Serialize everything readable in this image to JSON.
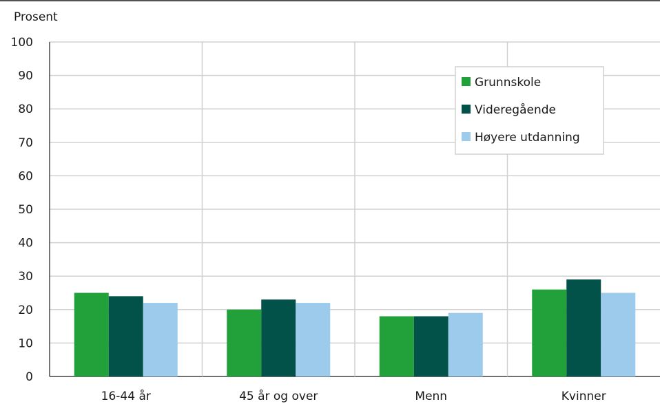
{
  "chart_data": {
    "type": "bar",
    "ylabel": "Prosent",
    "ylim": [
      0,
      100
    ],
    "yticks": [
      0,
      10,
      20,
      30,
      40,
      50,
      60,
      70,
      80,
      90,
      100
    ],
    "categories": [
      "16-44 år",
      "45 år og over",
      "Menn",
      "Kvinner"
    ],
    "series": [
      {
        "name": "Grunnskole",
        "color": "#22a13b",
        "values": [
          25,
          20,
          18,
          26
        ]
      },
      {
        "name": "Videregående",
        "color": "#02524a",
        "values": [
          24,
          23,
          18,
          29
        ]
      },
      {
        "name": "Høyere utdanning",
        "color": "#9ccbec",
        "values": [
          22,
          22,
          19,
          25
        ]
      }
    ],
    "grid": true,
    "legend_position": "top-right"
  }
}
